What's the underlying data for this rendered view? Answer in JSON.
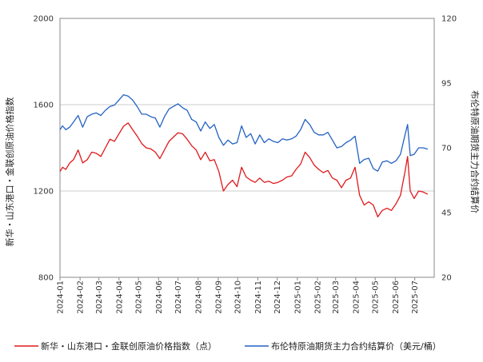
{
  "chart_data": {
    "type": "line",
    "title": "",
    "xlabel": "",
    "ylabel": "新华・山东港口・金联创原油价格指数",
    "y2label": "布伦特原油期货主力合约结算价",
    "ylim": [
      800,
      2000
    ],
    "y2lim": [
      20,
      120
    ],
    "yticks": [
      800,
      1200,
      1600,
      2000
    ],
    "y2ticks": [
      20,
      45,
      70,
      95,
      120
    ],
    "xlim": [
      "2024-01-01",
      "2025-07-31"
    ],
    "xticks": [
      "2024-01",
      "2024-02",
      "2024-03",
      "2024-04",
      "2024-05",
      "2024-06",
      "2024-07",
      "2024-08",
      "2024-09",
      "2024-10",
      "2024-11",
      "2024-12",
      "2025-01",
      "2025-02",
      "2025-03",
      "2025-04",
      "2025-05",
      "2025-06",
      "2025-07"
    ],
    "grid": true,
    "legend_position": "bottom",
    "series": [
      {
        "name": "新华・山东港口・金联创原油价格指数（点）",
        "axis": "left",
        "color": "#e0191c",
        "points": [
          [
            "2024-01-01",
            1290
          ],
          [
            "2024-01-05",
            1310
          ],
          [
            "2024-01-10",
            1300
          ],
          [
            "2024-01-16",
            1330
          ],
          [
            "2024-01-22",
            1345
          ],
          [
            "2024-01-29",
            1390
          ],
          [
            "2024-02-05",
            1330
          ],
          [
            "2024-02-12",
            1345
          ],
          [
            "2024-02-19",
            1380
          ],
          [
            "2024-02-26",
            1375
          ],
          [
            "2024-03-04",
            1360
          ],
          [
            "2024-03-11",
            1400
          ],
          [
            "2024-03-18",
            1440
          ],
          [
            "2024-03-25",
            1430
          ],
          [
            "2024-04-01",
            1465
          ],
          [
            "2024-04-08",
            1500
          ],
          [
            "2024-04-15",
            1515
          ],
          [
            "2024-04-22",
            1485
          ],
          [
            "2024-04-29",
            1455
          ],
          [
            "2024-05-06",
            1420
          ],
          [
            "2024-05-13",
            1400
          ],
          [
            "2024-05-20",
            1395
          ],
          [
            "2024-05-27",
            1380
          ],
          [
            "2024-06-03",
            1350
          ],
          [
            "2024-06-10",
            1390
          ],
          [
            "2024-06-17",
            1430
          ],
          [
            "2024-06-24",
            1450
          ],
          [
            "2024-07-01",
            1470
          ],
          [
            "2024-07-08",
            1465
          ],
          [
            "2024-07-15",
            1440
          ],
          [
            "2024-07-22",
            1410
          ],
          [
            "2024-07-29",
            1390
          ],
          [
            "2024-08-05",
            1345
          ],
          [
            "2024-08-12",
            1380
          ],
          [
            "2024-08-19",
            1340
          ],
          [
            "2024-08-26",
            1345
          ],
          [
            "2024-09-02",
            1290
          ],
          [
            "2024-09-09",
            1200
          ],
          [
            "2024-09-16",
            1230
          ],
          [
            "2024-09-23",
            1250
          ],
          [
            "2024-09-30",
            1220
          ],
          [
            "2024-10-07",
            1310
          ],
          [
            "2024-10-14",
            1265
          ],
          [
            "2024-10-21",
            1250
          ],
          [
            "2024-10-28",
            1240
          ],
          [
            "2024-11-04",
            1260
          ],
          [
            "2024-11-11",
            1240
          ],
          [
            "2024-11-18",
            1245
          ],
          [
            "2024-11-25",
            1235
          ],
          [
            "2024-12-02",
            1240
          ],
          [
            "2024-12-09",
            1250
          ],
          [
            "2024-12-16",
            1265
          ],
          [
            "2024-12-23",
            1270
          ],
          [
            "2024-12-30",
            1300
          ],
          [
            "2025-01-06",
            1325
          ],
          [
            "2025-01-13",
            1380
          ],
          [
            "2025-01-20",
            1355
          ],
          [
            "2025-01-27",
            1320
          ],
          [
            "2025-02-03",
            1300
          ],
          [
            "2025-02-10",
            1285
          ],
          [
            "2025-02-17",
            1295
          ],
          [
            "2025-02-24",
            1260
          ],
          [
            "2025-03-03",
            1250
          ],
          [
            "2025-03-10",
            1215
          ],
          [
            "2025-03-17",
            1250
          ],
          [
            "2025-03-24",
            1260
          ],
          [
            "2025-03-31",
            1310
          ],
          [
            "2025-04-07",
            1180
          ],
          [
            "2025-04-14",
            1135
          ],
          [
            "2025-04-21",
            1150
          ],
          [
            "2025-04-28",
            1135
          ],
          [
            "2025-05-05",
            1080
          ],
          [
            "2025-05-12",
            1110
          ],
          [
            "2025-05-19",
            1120
          ],
          [
            "2025-05-26",
            1110
          ],
          [
            "2025-06-02",
            1140
          ],
          [
            "2025-06-09",
            1180
          ],
          [
            "2025-06-16",
            1290
          ],
          [
            "2025-06-20",
            1360
          ],
          [
            "2025-06-24",
            1200
          ],
          [
            "2025-06-30",
            1165
          ],
          [
            "2025-07-07",
            1200
          ],
          [
            "2025-07-14",
            1195
          ],
          [
            "2025-07-21",
            1185
          ]
        ]
      },
      {
        "name": "布伦特原油期货主力合约结算价（美元/桶）",
        "axis": "right",
        "color": "#2462c4",
        "points": [
          [
            "2024-01-01",
            77
          ],
          [
            "2024-01-05",
            78.5
          ],
          [
            "2024-01-10",
            77
          ],
          [
            "2024-01-16",
            78
          ],
          [
            "2024-01-22",
            80
          ],
          [
            "2024-01-29",
            82.5
          ],
          [
            "2024-02-05",
            78
          ],
          [
            "2024-02-12",
            82
          ],
          [
            "2024-02-19",
            83
          ],
          [
            "2024-02-26",
            83.5
          ],
          [
            "2024-03-04",
            82.5
          ],
          [
            "2024-03-11",
            84.5
          ],
          [
            "2024-03-18",
            86
          ],
          [
            "2024-03-25",
            86.5
          ],
          [
            "2024-04-01",
            88.5
          ],
          [
            "2024-04-08",
            90.5
          ],
          [
            "2024-04-15",
            90
          ],
          [
            "2024-04-22",
            88.5
          ],
          [
            "2024-04-29",
            86
          ],
          [
            "2024-05-06",
            83
          ],
          [
            "2024-05-13",
            83
          ],
          [
            "2024-05-20",
            82
          ],
          [
            "2024-05-27",
            81.5
          ],
          [
            "2024-06-03",
            78
          ],
          [
            "2024-06-10",
            82
          ],
          [
            "2024-06-17",
            85
          ],
          [
            "2024-06-24",
            86
          ],
          [
            "2024-07-01",
            87
          ],
          [
            "2024-07-08",
            85.5
          ],
          [
            "2024-07-15",
            84.5
          ],
          [
            "2024-07-22",
            81
          ],
          [
            "2024-07-29",
            80
          ],
          [
            "2024-08-05",
            76.5
          ],
          [
            "2024-08-12",
            80
          ],
          [
            "2024-08-19",
            77.5
          ],
          [
            "2024-08-26",
            79
          ],
          [
            "2024-09-02",
            74
          ],
          [
            "2024-09-09",
            71
          ],
          [
            "2024-09-16",
            73
          ],
          [
            "2024-09-23",
            71.5
          ],
          [
            "2024-09-30",
            72
          ],
          [
            "2024-10-07",
            78.5
          ],
          [
            "2024-10-14",
            74
          ],
          [
            "2024-10-21",
            75.5
          ],
          [
            "2024-10-28",
            71.5
          ],
          [
            "2024-11-04",
            75
          ],
          [
            "2024-11-11",
            72
          ],
          [
            "2024-11-18",
            73.5
          ],
          [
            "2024-11-25",
            72.5
          ],
          [
            "2024-12-02",
            72
          ],
          [
            "2024-12-09",
            73.5
          ],
          [
            "2024-12-16",
            73
          ],
          [
            "2024-12-23",
            73.5
          ],
          [
            "2024-12-30",
            74.5
          ],
          [
            "2025-01-06",
            77
          ],
          [
            "2025-01-13",
            81
          ],
          [
            "2025-01-20",
            79
          ],
          [
            "2025-01-27",
            76
          ],
          [
            "2025-02-03",
            75
          ],
          [
            "2025-02-10",
            75
          ],
          [
            "2025-02-17",
            76
          ],
          [
            "2025-02-24",
            73
          ],
          [
            "2025-03-03",
            70
          ],
          [
            "2025-03-10",
            70.5
          ],
          [
            "2025-03-17",
            72
          ],
          [
            "2025-03-24",
            73
          ],
          [
            "2025-03-31",
            74.5
          ],
          [
            "2025-04-07",
            64
          ],
          [
            "2025-04-14",
            65.5
          ],
          [
            "2025-04-21",
            66
          ],
          [
            "2025-04-28",
            62
          ],
          [
            "2025-05-05",
            61
          ],
          [
            "2025-05-12",
            64.5
          ],
          [
            "2025-05-19",
            65
          ],
          [
            "2025-05-26",
            64
          ],
          [
            "2025-06-02",
            65
          ],
          [
            "2025-06-09",
            67.5
          ],
          [
            "2025-06-16",
            75
          ],
          [
            "2025-06-20",
            79
          ],
          [
            "2025-06-24",
            67
          ],
          [
            "2025-06-30",
            67.5
          ],
          [
            "2025-07-07",
            70
          ],
          [
            "2025-07-14",
            70
          ],
          [
            "2025-07-21",
            69.5
          ]
        ]
      }
    ]
  }
}
